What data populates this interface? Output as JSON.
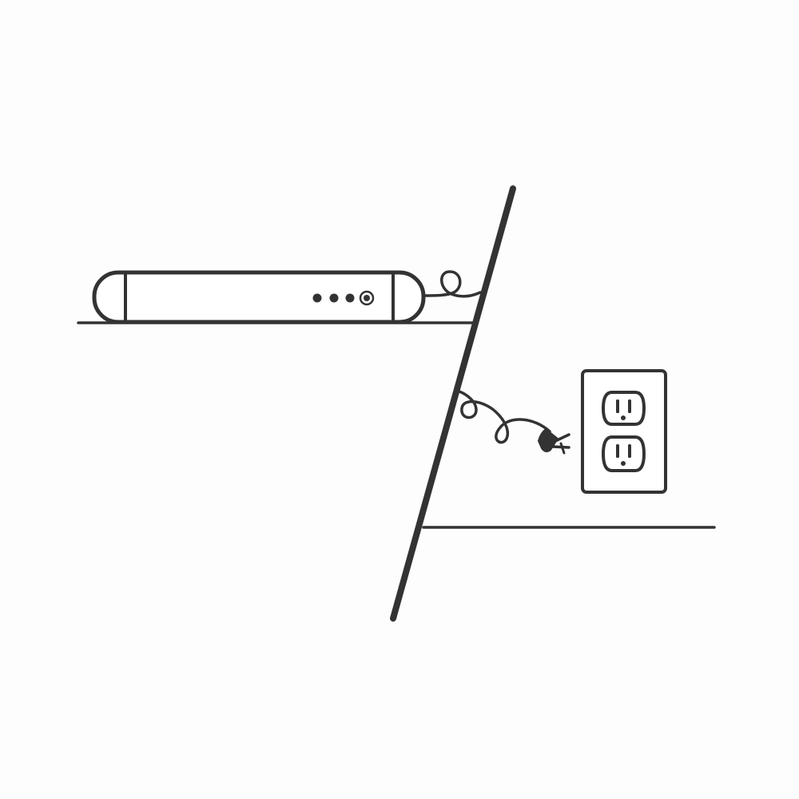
{
  "illustration": {
    "description_items": [
      {
        "name": "wall-divider-line"
      },
      {
        "name": "upper-shelf-line"
      },
      {
        "name": "lower-floor-line"
      },
      {
        "name": "soundbar-device"
      },
      {
        "name": "coiled-cable-upper"
      },
      {
        "name": "coiled-cable-lower"
      },
      {
        "name": "power-plug-icon"
      },
      {
        "name": "wall-outlet-icon"
      }
    ],
    "colors": {
      "line": "#333333",
      "background": "#fdfdfd",
      "fill": "#ffffff"
    },
    "device": {
      "indicator_lights": 3,
      "buttons": 1
    },
    "outlet": {
      "sockets": 2
    }
  }
}
